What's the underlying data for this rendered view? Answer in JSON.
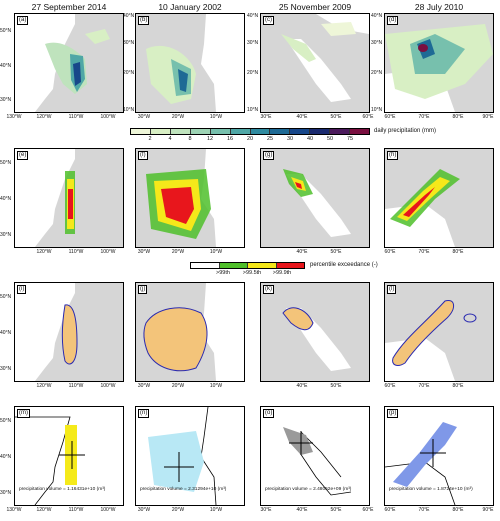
{
  "columns": [
    {
      "title": "27 September 2014"
    },
    {
      "title": "10 January 2002"
    },
    {
      "title": "25 November 2009"
    },
    {
      "title": "28 July 2010"
    }
  ],
  "rows": [
    {
      "labels": [
        "(a)",
        "(b)",
        "(c)",
        "(d)"
      ]
    },
    {
      "labels": [
        "(e)",
        "(f)",
        "(g)",
        "(h)"
      ]
    },
    {
      "labels": [
        "(i)",
        "(j)",
        "(k)",
        "(l)"
      ]
    },
    {
      "labels": [
        "(m)",
        "(n)",
        "(o)",
        "(p)"
      ]
    }
  ],
  "axes": {
    "col1": {
      "lat": [
        "50°N",
        "40°N",
        "30°N"
      ],
      "lon": [
        "130°W",
        "120°W",
        "110°W",
        "100°W"
      ]
    },
    "col2": {
      "lat": [
        "40°N",
        "30°N",
        "20°N",
        "10°N"
      ],
      "lon": [
        "30°W",
        "20°W",
        "10°W"
      ]
    },
    "col3": {
      "lat": [
        "40°N",
        "30°N",
        "20°N",
        "10°N"
      ],
      "lon": [
        "30°E",
        "40°E",
        "50°E",
        "60°E"
      ]
    },
    "col4": {
      "lat": [
        "40°N",
        "30°N",
        "20°N",
        "10°N"
      ],
      "lon": [
        "60°E",
        "70°E",
        "80°E",
        "90°E"
      ]
    }
  },
  "precip_legend": {
    "ticks": [
      "2",
      "4",
      "8",
      "12",
      "16",
      "20",
      "25",
      "30",
      "40",
      "50",
      "75"
    ],
    "label": "daily precipitation (mm)",
    "colors": [
      "#eef6d8",
      "#d8efc4",
      "#bfe3bd",
      "#9dd3b4",
      "#77c0ad",
      "#4fa7a6",
      "#2f8a9f",
      "#1e6a95",
      "#17478a",
      "#1a2a6f",
      "#4b1a5c",
      "#7a1040"
    ]
  },
  "exceedance_legend": {
    "ticks": [
      ">99th",
      ">99.5th",
      ">99.9th"
    ],
    "label": "percentile exceedance (-)",
    "colors": [
      "#ffffff",
      "#4fbf2a",
      "#f5e81a",
      "#e8161c"
    ]
  },
  "volumes": [
    "precipitation volume = 1.16431e+10 (m³)",
    "precipitation volume = 2.31294e+10 (m³)",
    "precipitation volume = 2.48052e+09 (m³)",
    "precipitation volume = 1.8724e+10 (m³)"
  ]
}
